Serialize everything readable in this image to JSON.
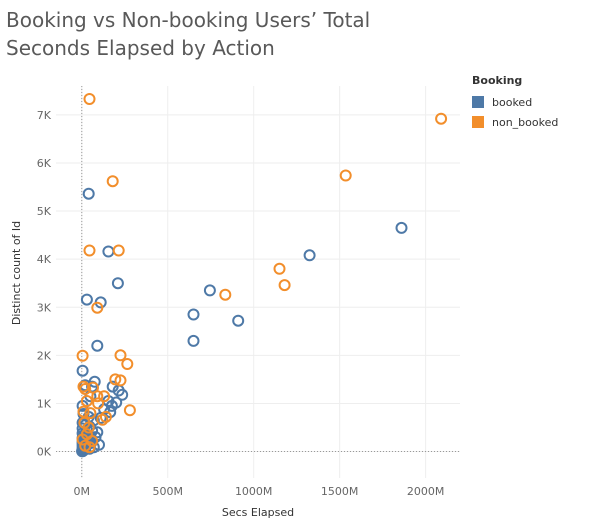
{
  "chart_data": {
    "type": "scatter",
    "title": "Booking vs Non-booking Users’ Total Seconds Elapsed by Action",
    "xlabel": "Secs Elapsed",
    "ylabel": "Distinct count of Id",
    "xlim": [
      -150000000,
      2200000000
    ],
    "ylim": [
      -550,
      7600
    ],
    "x_ticks": [
      0,
      500000000,
      1000000000,
      1500000000,
      2000000000
    ],
    "x_tick_labels": [
      "0M",
      "500M",
      "1000M",
      "1500M",
      "2000M"
    ],
    "y_ticks": [
      0,
      1000,
      2000,
      3000,
      4000,
      5000,
      6000,
      7000
    ],
    "y_tick_labels": [
      "0K",
      "1K",
      "2K",
      "3K",
      "4K",
      "5K",
      "6K",
      "7K"
    ],
    "legend": {
      "title": "Booking",
      "position": "right"
    },
    "series": [
      {
        "name": "booked",
        "color": "#4e79a7",
        "points": [
          [
            40000000,
            5360
          ],
          [
            155000000,
            4160
          ],
          [
            210000000,
            3500
          ],
          [
            30000000,
            3160
          ],
          [
            110000000,
            3100
          ],
          [
            90000000,
            2200
          ],
          [
            650000000,
            2850
          ],
          [
            650000000,
            2300
          ],
          [
            745000000,
            3350
          ],
          [
            910000000,
            2720
          ],
          [
            1325000000,
            4080
          ],
          [
            1860000000,
            4650
          ],
          [
            5000000,
            1680
          ],
          [
            75000000,
            1450
          ],
          [
            20000000,
            1380
          ],
          [
            60000000,
            1350
          ],
          [
            180000000,
            1350
          ],
          [
            215000000,
            1270
          ],
          [
            235000000,
            1180
          ],
          [
            50000000,
            1150
          ],
          [
            155000000,
            1050
          ],
          [
            200000000,
            1020
          ],
          [
            175000000,
            950
          ],
          [
            5000000,
            950
          ],
          [
            130000000,
            880
          ],
          [
            165000000,
            820
          ],
          [
            10000000,
            780
          ],
          [
            40000000,
            720
          ],
          [
            110000000,
            700
          ],
          [
            70000000,
            650
          ],
          [
            5000000,
            600
          ],
          [
            20000000,
            550
          ],
          [
            45000000,
            520
          ],
          [
            5000000,
            480
          ],
          [
            30000000,
            450
          ],
          [
            60000000,
            430
          ],
          [
            90000000,
            400
          ],
          [
            5000000,
            380
          ],
          [
            15000000,
            350
          ],
          [
            35000000,
            330
          ],
          [
            50000000,
            310
          ],
          [
            80000000,
            300
          ],
          [
            5000000,
            280
          ],
          [
            25000000,
            260
          ],
          [
            10000000,
            240
          ],
          [
            40000000,
            230
          ],
          [
            5000000,
            200
          ],
          [
            20000000,
            180
          ],
          [
            5000000,
            160
          ],
          [
            15000000,
            140
          ],
          [
            30000000,
            130
          ],
          [
            5000000,
            110
          ],
          [
            10000000,
            90
          ],
          [
            20000000,
            80
          ],
          [
            5000000,
            60
          ],
          [
            8000000,
            40
          ],
          [
            12000000,
            30
          ],
          [
            3000000,
            20
          ],
          [
            6000000,
            10
          ],
          [
            2000000,
            5
          ],
          [
            100000000,
            140
          ],
          [
            55000000,
            180
          ],
          [
            70000000,
            90
          ],
          [
            45000000,
            60
          ]
        ]
      },
      {
        "name": "non_booked",
        "color": "#f28e2b",
        "points": [
          [
            45000000,
            7330
          ],
          [
            2090000000,
            6920
          ],
          [
            180000000,
            5620
          ],
          [
            1535000000,
            5740
          ],
          [
            45000000,
            4180
          ],
          [
            215000000,
            4180
          ],
          [
            1150000000,
            3800
          ],
          [
            1180000000,
            3460
          ],
          [
            835000000,
            3260
          ],
          [
            90000000,
            2990
          ],
          [
            5000000,
            1990
          ],
          [
            225000000,
            2000
          ],
          [
            265000000,
            1820
          ],
          [
            195000000,
            1500
          ],
          [
            225000000,
            1480
          ],
          [
            10000000,
            1350
          ],
          [
            65000000,
            1330
          ],
          [
            20000000,
            1300
          ],
          [
            130000000,
            1150
          ],
          [
            90000000,
            1150
          ],
          [
            30000000,
            1050
          ],
          [
            95000000,
            1000
          ],
          [
            280000000,
            860
          ],
          [
            10000000,
            830
          ],
          [
            50000000,
            800
          ],
          [
            140000000,
            720
          ],
          [
            120000000,
            660
          ],
          [
            15000000,
            600
          ],
          [
            40000000,
            500
          ],
          [
            30000000,
            360
          ],
          [
            5000000,
            250
          ],
          [
            60000000,
            220
          ],
          [
            20000000,
            120
          ],
          [
            45000000,
            90
          ]
        ]
      }
    ]
  }
}
